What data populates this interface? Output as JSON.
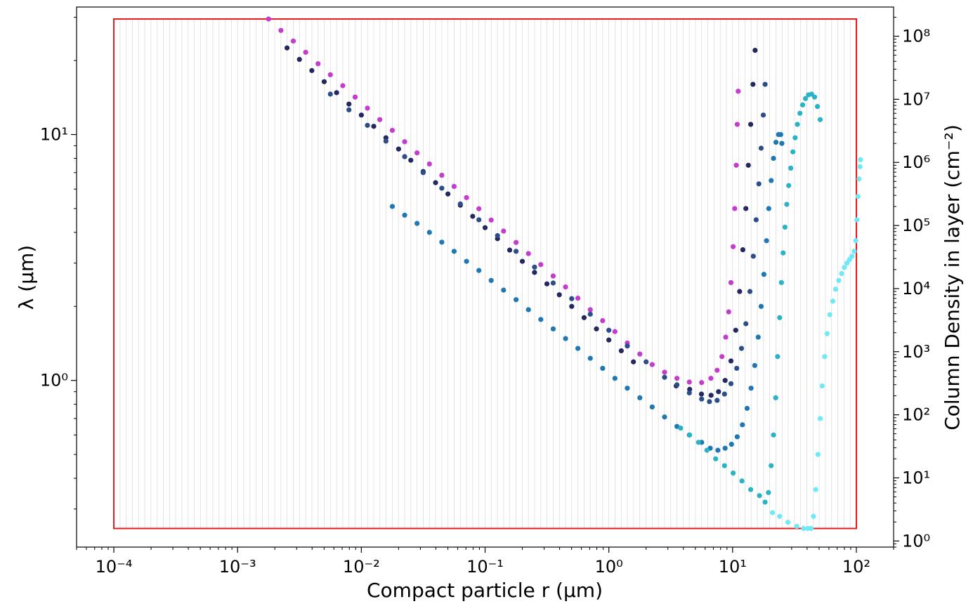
{
  "chart_data": {
    "type": "scatter",
    "title": "",
    "x_axis": {
      "scale": "log",
      "range": [
        5e-05,
        200
      ],
      "label": "Compact particle r (μm)",
      "tick_labels": [
        "10⁻⁴",
        "10⁻³",
        "10⁻²",
        "10⁻¹",
        "10⁰",
        "10¹",
        "10²"
      ]
    },
    "y_axis_left": {
      "scale": "log",
      "range": [
        0.21,
        33
      ],
      "label": "λ (μm)",
      "tick_labels": [
        "10⁰",
        "10¹"
      ]
    },
    "y_axis_right": {
      "scale": "log",
      "range": [
        0.8,
        290000000.0
      ],
      "label": "Column Density in layer (cm⁻²)",
      "tick_labels": [
        "10⁰",
        "10¹",
        "10²",
        "10³",
        "10⁴",
        "10⁵",
        "10⁶",
        "10⁷",
        "10⁸"
      ]
    },
    "grid": "vertical minor lines on x axis",
    "legend": "none",
    "bounding_box": {
      "color": "#e41a1c",
      "x_range": [
        0.0001,
        100
      ],
      "y_range": [
        0.25,
        29.5
      ]
    },
    "series": [
      {
        "color": "#c43ccc",
        "values": [
          [
            0.00178,
            29.5
          ],
          [
            0.00224,
            26.5
          ],
          [
            0.00282,
            24.0
          ],
          [
            0.00355,
            21.6
          ],
          [
            0.00447,
            19.4
          ],
          [
            0.00562,
            17.5
          ],
          [
            0.00708,
            15.8
          ],
          [
            0.00891,
            14.2
          ],
          [
            0.0112,
            12.8
          ],
          [
            0.0141,
            11.5
          ],
          [
            0.0178,
            10.4
          ],
          [
            0.0224,
            9.35
          ],
          [
            0.0282,
            8.42
          ],
          [
            0.0355,
            7.59
          ],
          [
            0.0447,
            6.83
          ],
          [
            0.0562,
            6.15
          ],
          [
            0.0708,
            5.54
          ],
          [
            0.0891,
            4.99
          ],
          [
            0.112,
            4.49
          ],
          [
            0.141,
            4.05
          ],
          [
            0.178,
            3.64
          ],
          [
            0.224,
            3.28
          ],
          [
            0.282,
            2.96
          ],
          [
            0.355,
            2.66
          ],
          [
            0.447,
            2.4
          ],
          [
            0.562,
            2.16
          ],
          [
            0.708,
            1.94
          ],
          [
            0.891,
            1.75
          ],
          [
            1.12,
            1.58
          ],
          [
            1.41,
            1.42
          ],
          [
            1.78,
            1.28
          ],
          [
            2.24,
            1.16
          ],
          [
            2.82,
            1.08
          ],
          [
            3.55,
            1.02
          ],
          [
            4.47,
            0.985
          ],
          [
            5.62,
            0.98
          ],
          [
            6.68,
            1.02
          ],
          [
            7.5,
            1.1
          ],
          [
            8.2,
            1.25
          ],
          [
            8.8,
            1.5
          ],
          [
            9.3,
            1.9
          ],
          [
            9.7,
            2.5
          ],
          [
            10.1,
            3.5
          ],
          [
            10.4,
            5.0
          ],
          [
            10.7,
            7.5
          ],
          [
            10.9,
            11.0
          ],
          [
            11.1,
            15.0
          ]
        ]
      },
      {
        "color": "#252860",
        "values": [
          [
            0.00251,
            22.5
          ],
          [
            0.00316,
            20.2
          ],
          [
            0.00398,
            18.2
          ],
          [
            0.00501,
            16.4
          ],
          [
            0.00631,
            14.8
          ],
          [
            0.00794,
            13.3
          ],
          [
            0.01,
            12.0
          ],
          [
            0.0126,
            10.8
          ],
          [
            0.0158,
            9.7
          ],
          [
            0.02,
            8.73
          ],
          [
            0.0251,
            7.86
          ],
          [
            0.0316,
            7.07
          ],
          [
            0.0398,
            6.37
          ],
          [
            0.0501,
            5.73
          ],
          [
            0.0631,
            5.16
          ],
          [
            0.0794,
            4.65
          ],
          [
            0.1,
            4.18
          ],
          [
            0.126,
            3.77
          ],
          [
            0.158,
            3.39
          ],
          [
            0.2,
            3.05
          ],
          [
            0.251,
            2.75
          ],
          [
            0.316,
            2.47
          ],
          [
            0.398,
            2.23
          ],
          [
            0.501,
            2.0
          ],
          [
            0.631,
            1.8
          ],
          [
            0.794,
            1.62
          ],
          [
            1.0,
            1.46
          ],
          [
            1.26,
            1.32
          ],
          [
            1.58,
            1.19
          ],
          [
            3.5,
            0.95
          ],
          [
            4.5,
            0.92
          ],
          [
            5.6,
            0.88
          ],
          [
            6.7,
            0.87
          ],
          [
            7.7,
            0.9
          ],
          [
            8.7,
            1.0
          ],
          [
            9.7,
            1.2
          ],
          [
            10.6,
            1.6
          ],
          [
            11.4,
            2.3
          ],
          [
            12.1,
            3.4
          ],
          [
            12.8,
            5.0
          ],
          [
            13.4,
            7.5
          ],
          [
            14.0,
            11.0
          ],
          [
            14.6,
            16.0
          ],
          [
            15.2,
            22.0
          ]
        ]
      },
      {
        "color": "#2c4d8a",
        "values": [
          [
            0.00562,
            14.6
          ],
          [
            0.00794,
            12.6
          ],
          [
            0.0112,
            10.9
          ],
          [
            0.0158,
            9.4
          ],
          [
            0.0224,
            8.13
          ],
          [
            0.0316,
            7.0
          ],
          [
            0.0447,
            6.05
          ],
          [
            0.0631,
            5.22
          ],
          [
            0.0891,
            4.5
          ],
          [
            0.126,
            3.88
          ],
          [
            0.178,
            3.35
          ],
          [
            0.251,
            2.89
          ],
          [
            0.355,
            2.49
          ],
          [
            0.501,
            2.15
          ],
          [
            0.708,
            1.86
          ],
          [
            1.0,
            1.6
          ],
          [
            1.41,
            1.38
          ],
          [
            2.0,
            1.19
          ],
          [
            2.82,
            1.03
          ],
          [
            3.55,
            0.96
          ],
          [
            4.47,
            0.89
          ],
          [
            5.62,
            0.84
          ],
          [
            6.5,
            0.82
          ],
          [
            7.5,
            0.83
          ],
          [
            8.6,
            0.88
          ],
          [
            9.7,
            0.97
          ],
          [
            10.8,
            1.12
          ],
          [
            11.8,
            1.35
          ],
          [
            12.8,
            1.7
          ],
          [
            13.8,
            2.3
          ],
          [
            14.7,
            3.2
          ],
          [
            15.5,
            4.5
          ],
          [
            16.3,
            6.3
          ],
          [
            17.0,
            8.8
          ],
          [
            17.7,
            12.0
          ],
          [
            18.3,
            16.0
          ]
        ]
      },
      {
        "color": "#1f78b4",
        "values": [
          [
            0.0178,
            5.1
          ],
          [
            0.0224,
            4.7
          ],
          [
            0.0282,
            4.35
          ],
          [
            0.0355,
            4.0
          ],
          [
            0.0447,
            3.65
          ],
          [
            0.0562,
            3.35
          ],
          [
            0.0708,
            3.05
          ],
          [
            0.0891,
            2.8
          ],
          [
            0.112,
            2.55
          ],
          [
            0.141,
            2.33
          ],
          [
            0.178,
            2.13
          ],
          [
            0.224,
            1.94
          ],
          [
            0.282,
            1.77
          ],
          [
            0.355,
            1.62
          ],
          [
            0.447,
            1.48
          ],
          [
            0.562,
            1.35
          ],
          [
            0.708,
            1.23
          ],
          [
            0.891,
            1.12
          ],
          [
            1.12,
            1.02
          ],
          [
            1.41,
            0.93
          ],
          [
            1.78,
            0.85
          ],
          [
            2.24,
            0.78
          ],
          [
            2.82,
            0.71
          ],
          [
            3.55,
            0.65
          ],
          [
            4.47,
            0.6
          ],
          [
            5.62,
            0.56
          ],
          [
            6.6,
            0.53
          ],
          [
            7.6,
            0.52
          ],
          [
            8.7,
            0.53
          ],
          [
            9.8,
            0.55
          ],
          [
            10.9,
            0.59
          ],
          [
            12.0,
            0.66
          ],
          [
            13.1,
            0.77
          ],
          [
            14.1,
            0.93
          ],
          [
            15.1,
            1.15
          ],
          [
            16.1,
            1.5
          ],
          [
            17.0,
            2.0
          ],
          [
            17.9,
            2.7
          ],
          [
            18.8,
            3.7
          ],
          [
            19.6,
            5.0
          ],
          [
            20.5,
            6.5
          ],
          [
            21.4,
            8.0
          ],
          [
            22.4,
            9.3
          ],
          [
            23.5,
            10.0
          ],
          [
            24.5,
            10.0
          ],
          [
            25.0,
            9.2
          ]
        ]
      },
      {
        "color": "#29b3c4",
        "values": [
          [
            3.8,
            0.64
          ],
          [
            4.5,
            0.6
          ],
          [
            5.3,
            0.56
          ],
          [
            6.2,
            0.52
          ],
          [
            7.3,
            0.48
          ],
          [
            8.6,
            0.45
          ],
          [
            10.1,
            0.42
          ],
          [
            11.9,
            0.39
          ],
          [
            14.0,
            0.36
          ],
          [
            16.5,
            0.34
          ],
          [
            18.3,
            0.32
          ],
          [
            19.5,
            0.35
          ],
          [
            20.5,
            0.45
          ],
          [
            21.4,
            0.6
          ],
          [
            22.3,
            0.85
          ],
          [
            23.1,
            1.25
          ],
          [
            24.0,
            1.8
          ],
          [
            24.8,
            2.5
          ],
          [
            25.6,
            3.3
          ],
          [
            26.5,
            4.2
          ],
          [
            27.4,
            5.2
          ],
          [
            28.4,
            6.2
          ],
          [
            29.5,
            7.3
          ],
          [
            30.7,
            8.5
          ],
          [
            32.0,
            9.7
          ],
          [
            33.4,
            11.0
          ],
          [
            35.0,
            12.2
          ],
          [
            36.8,
            13.2
          ],
          [
            38.8,
            14.0
          ],
          [
            41.0,
            14.5
          ],
          [
            43.5,
            14.6
          ],
          [
            46.0,
            14.2
          ],
          [
            48.5,
            13.0
          ],
          [
            51.0,
            11.5
          ]
        ]
      },
      {
        "color": "#6ee9f5",
        "values": [
          [
            21.0,
            0.29
          ],
          [
            24.0,
            0.28
          ],
          [
            28.0,
            0.265
          ],
          [
            33.0,
            0.255
          ],
          [
            37.5,
            0.25
          ],
          [
            40.5,
            0.25
          ],
          [
            43.0,
            0.25
          ],
          [
            45.0,
            0.28
          ],
          [
            47.0,
            0.36
          ],
          [
            49.0,
            0.5
          ],
          [
            51.0,
            0.7
          ],
          [
            53.0,
            0.95
          ],
          [
            55.5,
            1.25
          ],
          [
            58.0,
            1.55
          ],
          [
            61.0,
            1.85
          ],
          [
            64.5,
            2.1
          ],
          [
            68.0,
            2.35
          ],
          [
            72.0,
            2.55
          ],
          [
            76.0,
            2.72
          ],
          [
            80.0,
            2.88
          ],
          [
            84.0,
            3.0
          ],
          [
            88.0,
            3.1
          ],
          [
            92.0,
            3.2
          ],
          [
            96.0,
            3.35
          ],
          [
            99.0,
            3.7
          ],
          [
            101.0,
            4.5
          ],
          [
            103.0,
            5.6
          ],
          [
            105.0,
            6.6
          ],
          [
            107.0,
            7.4
          ],
          [
            108.0,
            7.9
          ]
        ]
      }
    ]
  }
}
